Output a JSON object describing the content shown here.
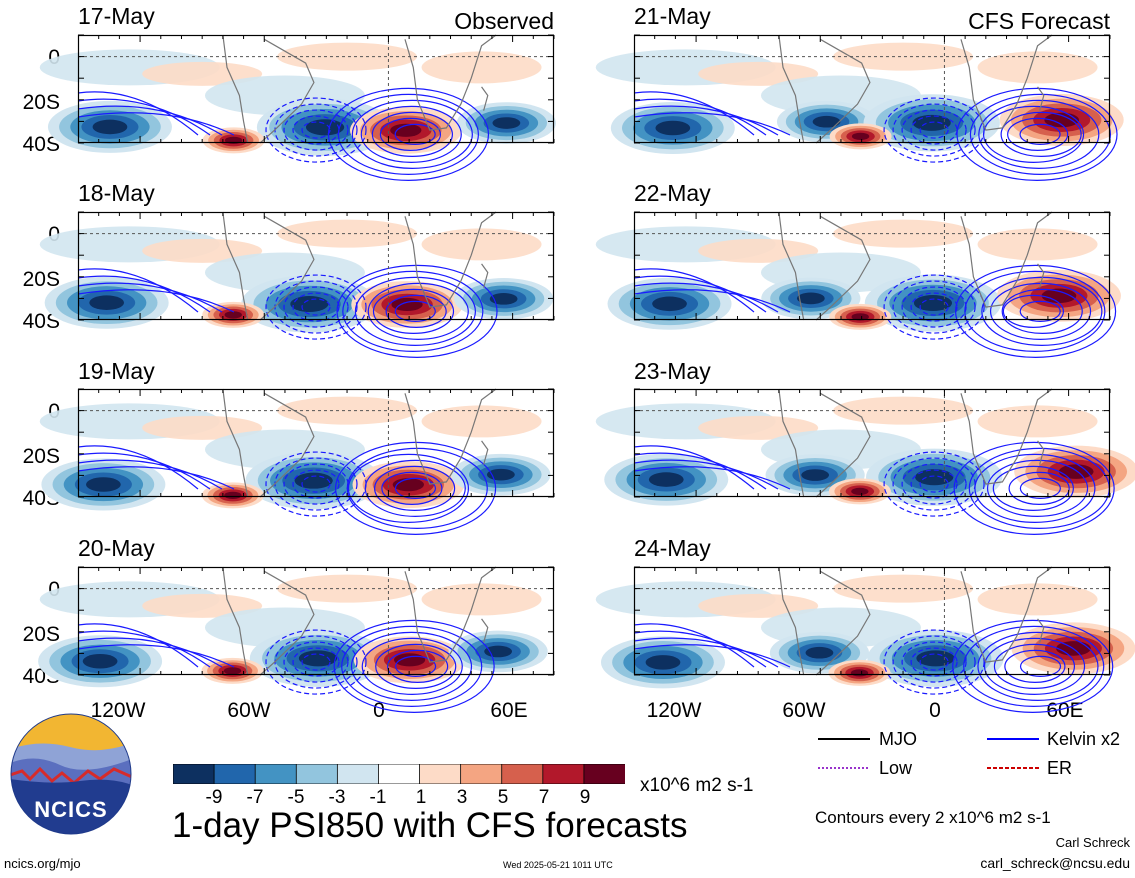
{
  "chart_data": {
    "type": "heatmap",
    "title": "1-day PSI850 with CFS forecasts",
    "units": "x10^6 m2 s-1",
    "columns": [
      {
        "tag": "Observed",
        "panels": [
          "17-May",
          "18-May",
          "19-May",
          "20-May"
        ]
      },
      {
        "tag": "CFS Forecast",
        "panels": [
          "21-May",
          "22-May",
          "23-May",
          "24-May"
        ]
      }
    ],
    "y_ticks": [
      "0",
      "20S",
      "40S"
    ],
    "x_ticks": [
      "120W",
      "60W",
      "0",
      "60E"
    ],
    "colorbar": {
      "labels": [
        "-9",
        "-7",
        "-5",
        "-3",
        "-1",
        "1",
        "3",
        "5",
        "7",
        "9"
      ],
      "colors": [
        "#0d3060",
        "#2166ac",
        "#4393c3",
        "#92c5de",
        "#d1e5f0",
        "#ffffff",
        "#fddbc7",
        "#f4a582",
        "#d6604d",
        "#b2182b",
        "#67001f"
      ]
    },
    "legend": [
      {
        "label": "MJO",
        "color": "#000000",
        "style": "solid"
      },
      {
        "label": "Kelvin x2",
        "color": "#0000ff",
        "style": "solid"
      },
      {
        "label": "Low",
        "color": "#9933cc",
        "style": "dotted"
      },
      {
        "label": "ER",
        "color": "#cc0000",
        "style": "dashed"
      }
    ],
    "contour_note": "Contours every 2 x10^6 m2 s-1"
  },
  "credits": {
    "author": "Carl Schreck",
    "email": "carl_schreck@ncsu.edu",
    "url": "ncics.org/mjo",
    "timestamp": "Wed 2025-05-21 1011 UTC",
    "logo_text": "NCICS"
  }
}
